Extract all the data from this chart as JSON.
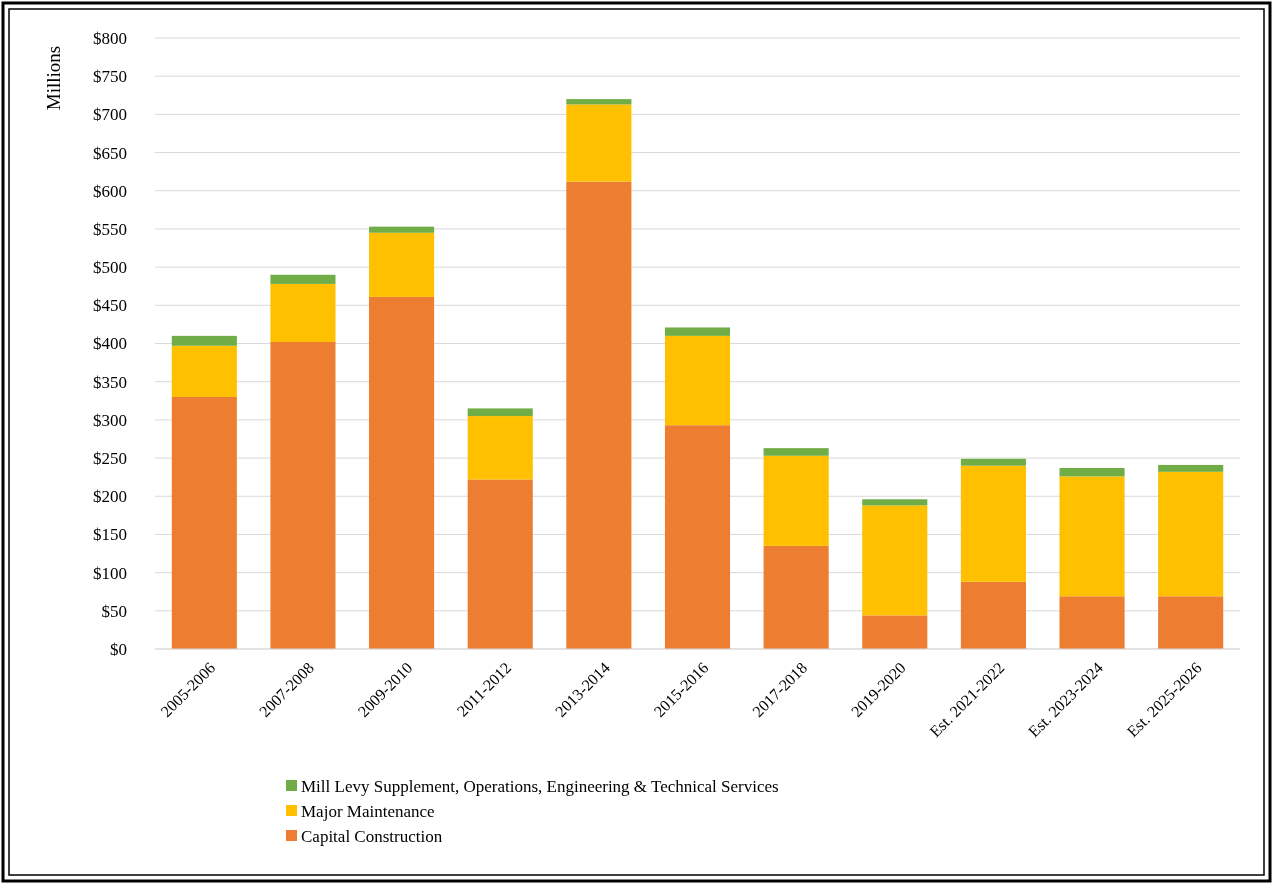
{
  "chart_data": {
    "type": "bar",
    "stacked": true,
    "ylabel": "Millions",
    "categories": [
      "2005-2006",
      "2007-2008",
      "2009-2010",
      "2011-2012",
      "2013-2014",
      "2015-2016",
      "2017-2018",
      "2019-2020",
      "Est. 2021-2022",
      "Est. 2023-2024",
      "Est. 2025-2026"
    ],
    "series": [
      {
        "name": "Capital Construction",
        "color": "#ed7d31",
        "values": [
          330,
          402,
          461,
          222,
          612,
          293,
          135,
          44,
          88,
          69,
          69
        ]
      },
      {
        "name": "Major Maintenance",
        "color": "#ffc000",
        "values": [
          67,
          76,
          84,
          83,
          101,
          117,
          118,
          144,
          152,
          157,
          163
        ]
      },
      {
        "name": "Mill Levy Supplement, Operations, Engineering & Technical Services",
        "color": "#70ad47",
        "values": [
          13,
          12,
          8,
          10,
          7,
          11,
          10,
          8,
          9,
          11,
          9
        ]
      }
    ],
    "ylim": [
      0,
      800
    ],
    "yticks": [
      {
        "value": 0,
        "label": "$0"
      },
      {
        "value": 50,
        "label": "$50"
      },
      {
        "value": 100,
        "label": "$100"
      },
      {
        "value": 150,
        "label": "$150"
      },
      {
        "value": 200,
        "label": "$200"
      },
      {
        "value": 250,
        "label": "$250"
      },
      {
        "value": 300,
        "label": "$300"
      },
      {
        "value": 350,
        "label": "$350"
      },
      {
        "value": 400,
        "label": "$400"
      },
      {
        "value": 450,
        "label": "$450"
      },
      {
        "value": 500,
        "label": "$500"
      },
      {
        "value": 550,
        "label": "$550"
      },
      {
        "value": 600,
        "label": "$600"
      },
      {
        "value": 650,
        "label": "$650"
      },
      {
        "value": 700,
        "label": "$700"
      },
      {
        "value": 750,
        "label": "$750"
      },
      {
        "value": 800,
        "label": "$800"
      }
    ],
    "grid": "y",
    "legend": "bottom"
  }
}
